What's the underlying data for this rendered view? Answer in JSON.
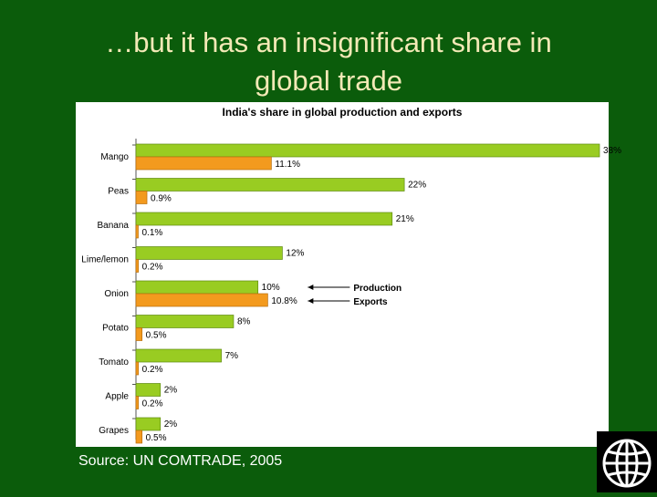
{
  "slide": {
    "title_line1": "…but it has an insignificant share in",
    "title_line2": "global trade",
    "source": "Source: UN COMTRADE, 2005",
    "logo_icon": "world-bank-globe-icon",
    "background_color": "#0b5c0b",
    "title_color": "#f3e9b6"
  },
  "chart_data": {
    "type": "bar",
    "orientation": "horizontal",
    "title": "India's share in global production and exports",
    "categories": [
      "Mango",
      "Peas",
      "Banana",
      "Lime/lemon",
      "Onion",
      "Potato",
      "Tomato",
      "Apple",
      "Grapes"
    ],
    "series": [
      {
        "name": "Production",
        "color": "#99cc22",
        "values": [
          38,
          22,
          21,
          12,
          10,
          8,
          7,
          2,
          2
        ],
        "labels": [
          "38%",
          "22%",
          "21%",
          "12%",
          "10%",
          "8%",
          "7%",
          "2%",
          "2%"
        ]
      },
      {
        "name": "Exports",
        "color": "#f39a1e",
        "values": [
          11.1,
          0.9,
          0.1,
          0.2,
          10.8,
          0.5,
          0.2,
          0.2,
          0.5
        ],
        "labels": [
          "11.1%",
          "0.9%",
          "0.1%",
          "0.2%",
          "10.8%",
          "0.5%",
          "0.2%",
          "0.2%",
          "0.5%"
        ]
      }
    ],
    "xlim": [
      0,
      38
    ],
    "grid": false,
    "legend": "inline arrows pointing at the Onion bars"
  }
}
